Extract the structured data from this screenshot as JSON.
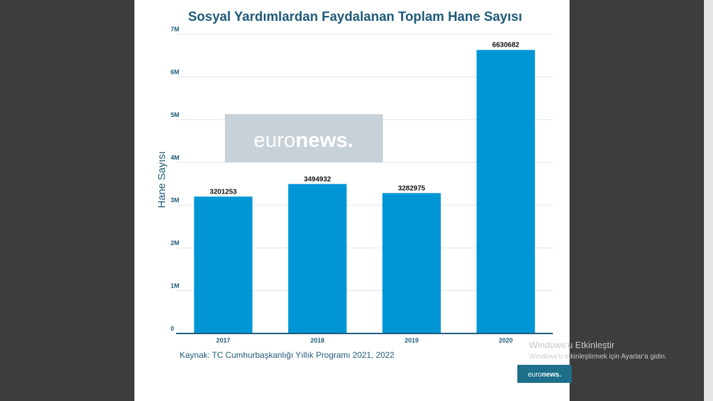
{
  "chart_data": {
    "type": "bar",
    "title": "Sosyal Yardımlardan Faydalanan Toplam Hane Sayısı",
    "xlabel": "",
    "ylabel": "Hane Sayısı",
    "categories": [
      "2017",
      "2018",
      "2019",
      "2020"
    ],
    "values": [
      3201253,
      3494932,
      3282975,
      6630682
    ],
    "ylim": [
      0,
      7000000
    ],
    "yticks": [
      0,
      1000000,
      2000000,
      3000000,
      4000000,
      5000000,
      6000000,
      7000000
    ],
    "ytick_labels": [
      "0",
      "1M",
      "2M",
      "3M",
      "4M",
      "5M",
      "6M",
      "7M"
    ],
    "data_labels": [
      "3201253",
      "3494932",
      "3282975",
      "6630682"
    ],
    "grid": "horizontal",
    "legend": "none",
    "bar_color": "#0096d6",
    "title_color": "#1e5a78",
    "source": "Kaynak: TC Cumhurbaşkanlığı Yıllık Programı 2021, 2022"
  },
  "watermark": {
    "text_light": "euro",
    "text_bold": "news",
    "dot": "."
  },
  "logo": {
    "text_light": "euro",
    "text_bold": "news",
    "dot": "."
  },
  "windows_activation": {
    "line1": "Windows'u Etkinleştir",
    "line2": "Windows'u etkinleştirmek için Ayarlar'a gidin."
  },
  "colors": {
    "background_dark": "#3d3d3d",
    "panel": "#ffffff",
    "watermark_box": "#c8d0d8",
    "logo_box": "#1d6f8a"
  }
}
